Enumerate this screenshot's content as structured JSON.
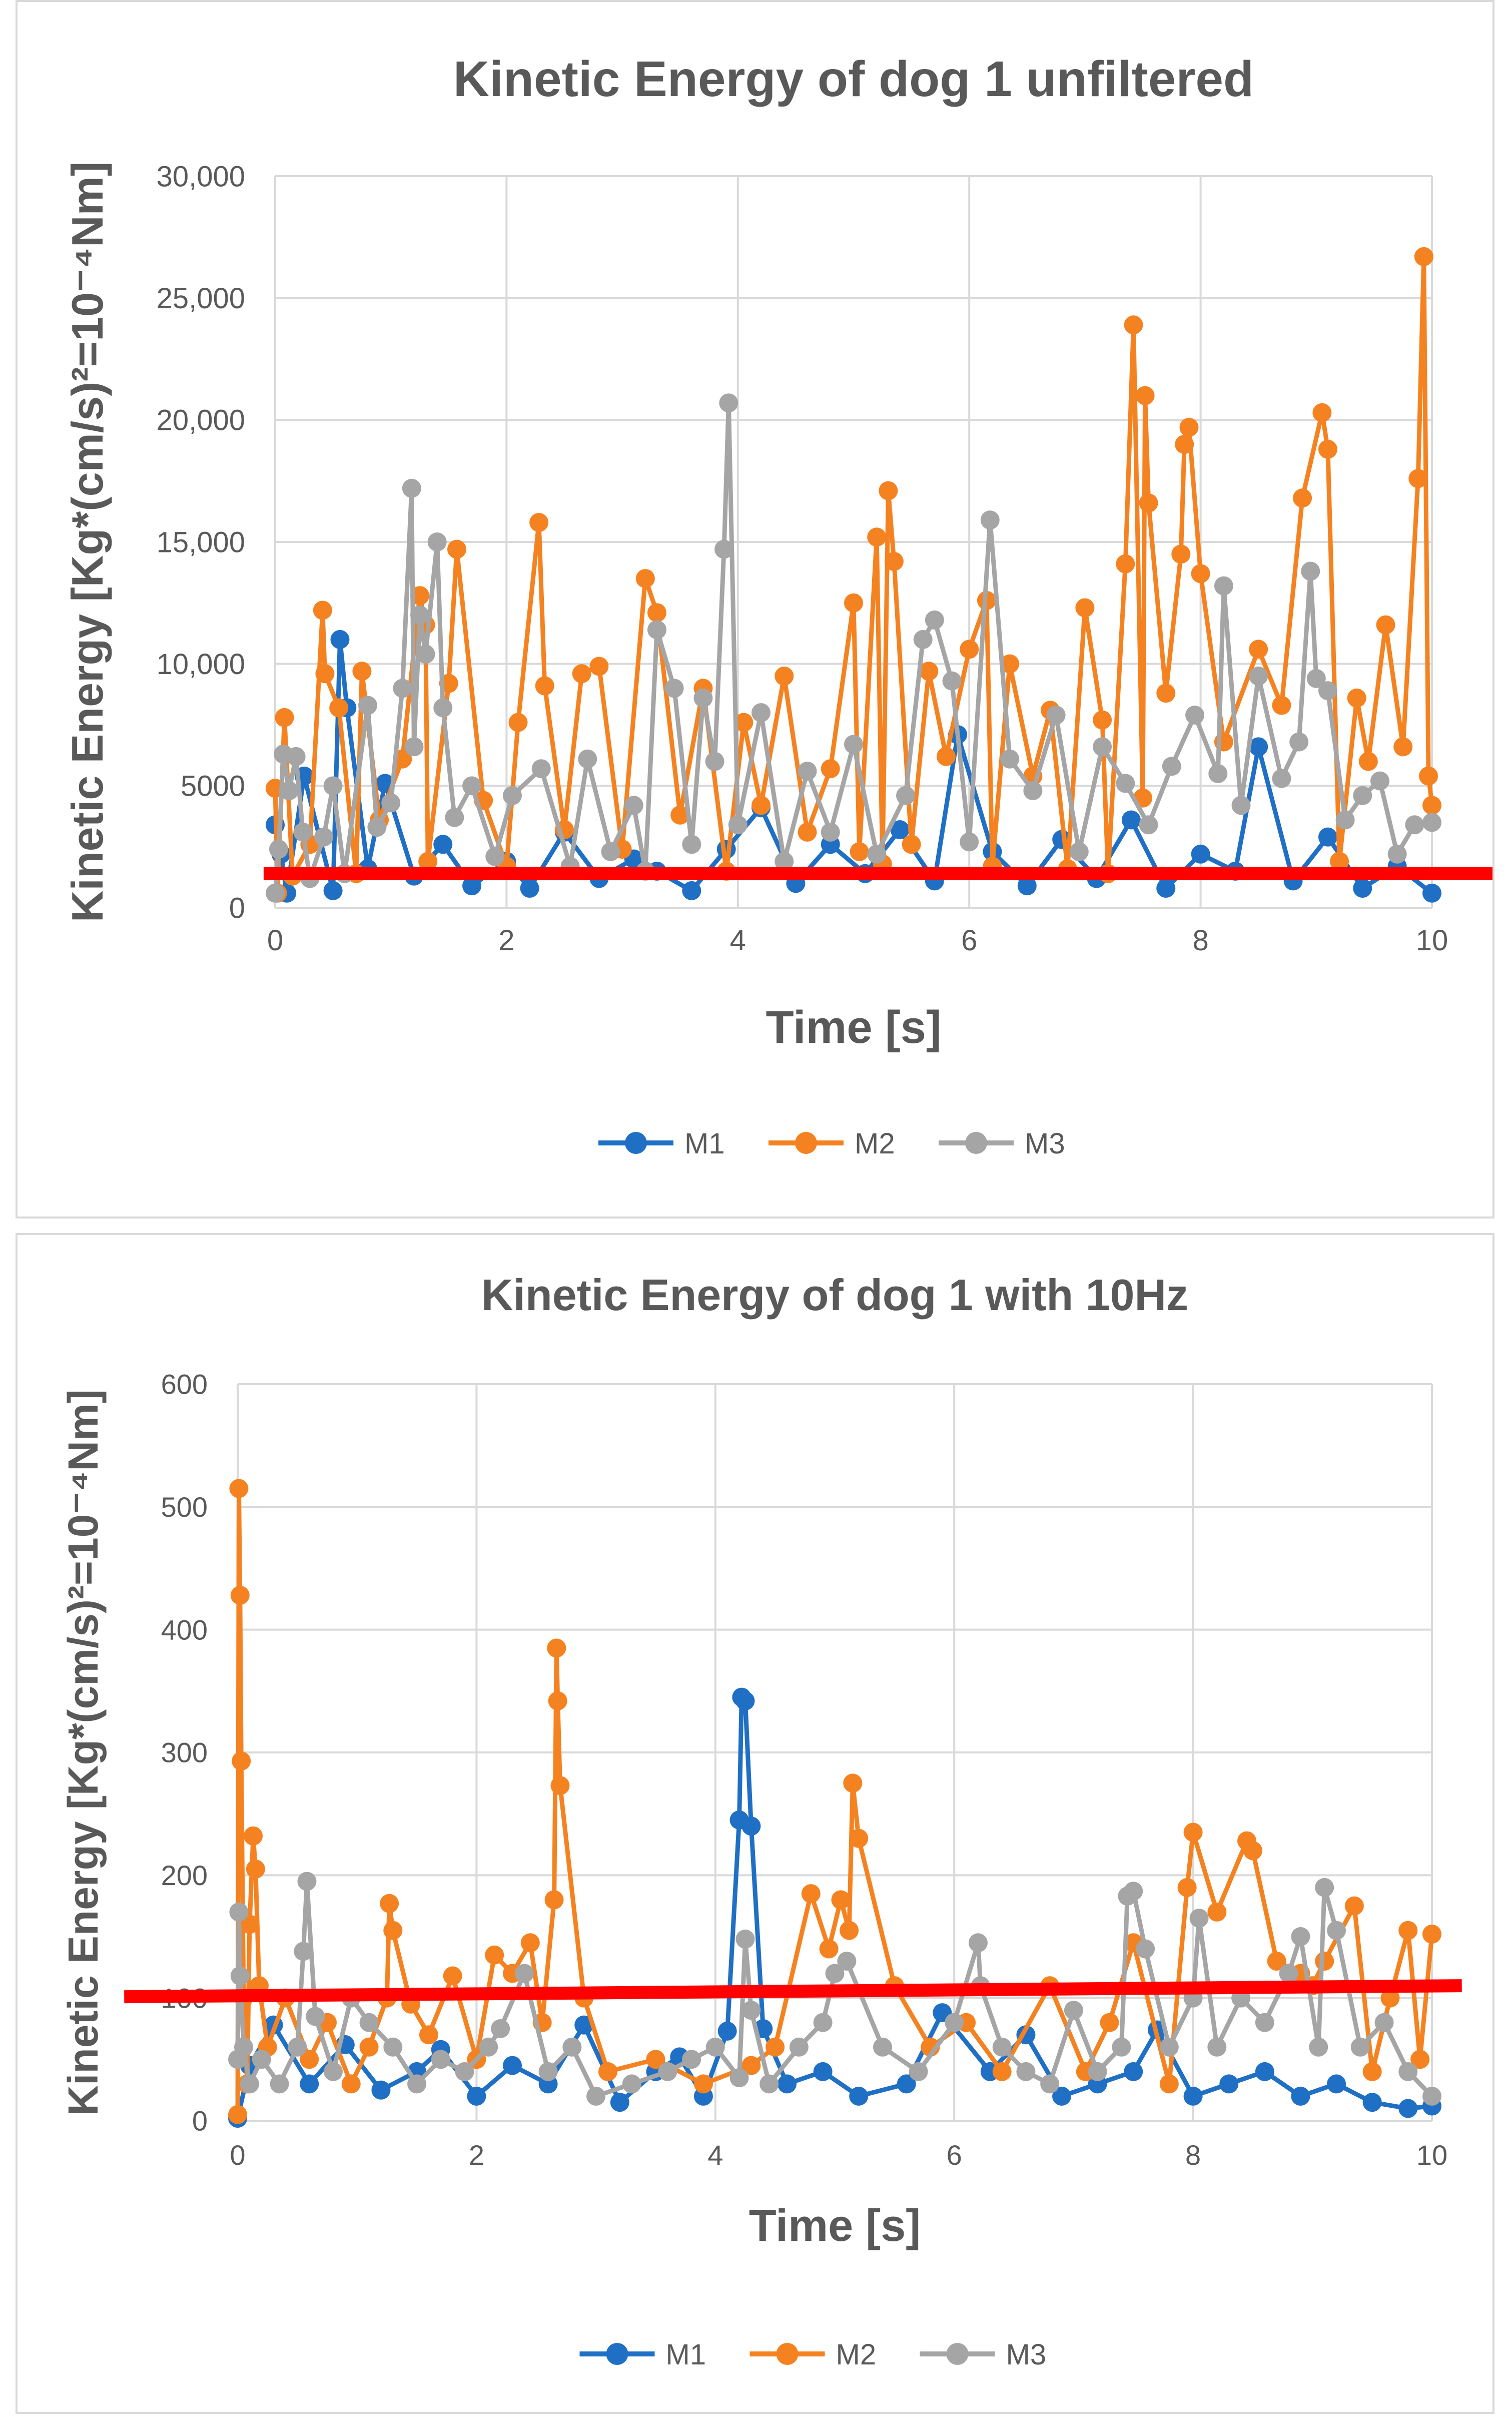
{
  "chart_data": [
    {
      "type": "line",
      "title": "Kinetic Energy of  dog 1 unfiltered",
      "xlabel": "Time [s]",
      "ylabel": "Kinetic Energy [Kg*(cm/s)²=10⁻⁴Nm]",
      "xlim": [
        0,
        10
      ],
      "ylim": [
        0,
        30000
      ],
      "x_ticks": [
        "0",
        "2",
        "4",
        "6",
        "8",
        "10"
      ],
      "y_ticks": [
        "0",
        "5000",
        "10,000",
        "15,000",
        "20,000",
        "25,000",
        "30,000"
      ],
      "legend": [
        "M1",
        "M2",
        "M3"
      ],
      "legend_position": "bottom",
      "grid": true,
      "threshold": {
        "label": "threshold",
        "x": [
          -0.1,
          10.55
        ],
        "y": [
          1400,
          1400
        ],
        "color": "#ff0000"
      },
      "series": [
        {
          "name": "M1",
          "color": "#1f6fc5",
          "x": [
            0.0,
            0.05,
            0.1,
            0.25,
            0.5,
            0.56,
            0.62,
            0.8,
            0.95,
            1.2,
            1.45,
            1.7,
            2.0,
            2.2,
            2.5,
            2.8,
            3.1,
            3.3,
            3.6,
            3.9,
            4.2,
            4.5,
            4.8,
            5.1,
            5.4,
            5.7,
            5.9,
            6.2,
            6.5,
            6.8,
            7.1,
            7.4,
            7.7,
            8.0,
            8.3,
            8.5,
            8.8,
            9.1,
            9.4,
            9.7,
            10.0
          ],
          "values": [
            3400,
            2200,
            600,
            5400,
            700,
            11000,
            8200,
            1600,
            5100,
            1300,
            2600,
            900,
            1900,
            800,
            3100,
            1200,
            2000,
            1500,
            700,
            2400,
            4100,
            1000,
            2600,
            1400,
            3200,
            1100,
            7100,
            2300,
            900,
            2800,
            1200,
            3600,
            800,
            2200,
            1500,
            6600,
            1100,
            2900,
            800,
            1700,
            600
          ]
        },
        {
          "name": "M2",
          "color": "#f58220",
          "x": [
            0.0,
            0.02,
            0.08,
            0.15,
            0.3,
            0.41,
            0.43,
            0.55,
            0.7,
            0.75,
            0.9,
            1.1,
            1.25,
            1.3,
            1.32,
            1.5,
            1.57,
            1.8,
            2.0,
            2.1,
            2.28,
            2.33,
            2.5,
            2.65,
            2.8,
            3.0,
            3.2,
            3.3,
            3.5,
            3.7,
            3.9,
            4.05,
            4.2,
            4.4,
            4.6,
            4.8,
            5.0,
            5.05,
            5.2,
            5.25,
            5.3,
            5.35,
            5.5,
            5.65,
            5.8,
            6.0,
            6.15,
            6.2,
            6.35,
            6.55,
            6.7,
            6.85,
            7.0,
            7.15,
            7.2,
            7.35,
            7.42,
            7.5,
            7.52,
            7.55,
            7.7,
            7.83,
            7.86,
            7.9,
            8.0,
            8.2,
            8.5,
            8.7,
            8.88,
            9.05,
            9.1,
            9.2,
            9.35,
            9.45,
            9.6,
            9.75,
            9.88,
            9.93,
            9.97,
            10.0
          ],
          "values": [
            4900,
            600,
            7800,
            1300,
            2600,
            12200,
            9600,
            8200,
            1400,
            9700,
            3600,
            6100,
            12800,
            11600,
            1900,
            9200,
            14700,
            4400,
            1700,
            7600,
            15800,
            9100,
            3200,
            9600,
            9900,
            2400,
            13500,
            12100,
            3800,
            9000,
            1500,
            7600,
            4200,
            9500,
            3100,
            5700,
            12500,
            2300,
            15200,
            1800,
            17100,
            14200,
            2600,
            9700,
            6200,
            10600,
            12600,
            1700,
            10000,
            5400,
            8100,
            1600,
            12300,
            7700,
            1400,
            14100,
            23900,
            4500,
            21000,
            16600,
            8800,
            14500,
            19000,
            19700,
            13700,
            6800,
            10600,
            8300,
            16800,
            20300,
            18800,
            1900,
            8600,
            6000,
            11600,
            6600,
            17600,
            26700,
            5400,
            4200
          ]
        },
        {
          "name": "M3",
          "color": "#a5a5a5",
          "x": [
            0.0,
            0.03,
            0.07,
            0.12,
            0.18,
            0.24,
            0.3,
            0.42,
            0.5,
            0.6,
            0.8,
            0.88,
            1.0,
            1.1,
            1.18,
            1.2,
            1.25,
            1.3,
            1.4,
            1.45,
            1.55,
            1.7,
            1.9,
            2.05,
            2.3,
            2.55,
            2.7,
            2.9,
            3.1,
            3.2,
            3.3,
            3.45,
            3.6,
            3.7,
            3.8,
            3.88,
            3.92,
            4.0,
            4.2,
            4.4,
            4.6,
            4.8,
            5.0,
            5.2,
            5.45,
            5.6,
            5.7,
            5.85,
            6.0,
            6.18,
            6.35,
            6.55,
            6.75,
            6.95,
            7.15,
            7.35,
            7.55,
            7.75,
            7.95,
            8.15,
            8.2,
            8.35,
            8.5,
            8.7,
            8.85,
            8.95,
            9.0,
            9.1,
            9.25,
            9.4,
            9.55,
            9.7,
            9.85,
            10.0
          ],
          "values": [
            600,
            2400,
            6300,
            4800,
            6200,
            3100,
            1200,
            2900,
            5000,
            1400,
            8300,
            3300,
            4300,
            9000,
            17200,
            6600,
            12000,
            10400,
            15000,
            8200,
            3700,
            5000,
            2100,
            4600,
            5700,
            1700,
            6100,
            2300,
            4200,
            1500,
            11400,
            9000,
            2600,
            8600,
            6000,
            14700,
            20700,
            3400,
            8000,
            1900,
            5600,
            3100,
            6700,
            2200,
            4600,
            11000,
            11800,
            9300,
            2700,
            15900,
            6100,
            4800,
            7900,
            2300,
            6600,
            5100,
            3400,
            5800,
            7900,
            5500,
            13200,
            4200,
            9500,
            5300,
            6800,
            13800,
            9400,
            8900,
            3600,
            4600,
            5200,
            2200,
            3400,
            3500
          ]
        }
      ]
    },
    {
      "type": "line",
      "title": "Kinetic Energy of dog 1 with 10Hz",
      "xlabel": "Time [s]",
      "ylabel": "Kinetic Energy [Kg*(cm/s)²=10⁻⁴Nm]",
      "xlim": [
        0,
        10
      ],
      "ylim": [
        0,
        600
      ],
      "x_ticks": [
        "0",
        "2",
        "4",
        "6",
        "8",
        "10"
      ],
      "y_ticks": [
        "0",
        "100",
        "200",
        "300",
        "400",
        "500",
        "600"
      ],
      "legend": [
        "M1",
        "M2",
        "M3"
      ],
      "legend_position": "bottom",
      "grid": true,
      "threshold": {
        "label": "threshold",
        "x": [
          -0.95,
          10.25
        ],
        "y": [
          101,
          110
        ],
        "color": "#ff0000"
      },
      "series": [
        {
          "name": "M1",
          "color": "#1f6fc5",
          "x": [
            0.0,
            0.1,
            0.3,
            0.6,
            0.9,
            1.2,
            1.5,
            1.7,
            2.0,
            2.3,
            2.6,
            2.9,
            3.2,
            3.5,
            3.7,
            3.9,
            4.1,
            4.2,
            4.22,
            4.25,
            4.3,
            4.4,
            4.6,
            4.9,
            5.2,
            5.6,
            5.9,
            6.3,
            6.6,
            6.9,
            7.2,
            7.5,
            7.7,
            8.0,
            8.3,
            8.6,
            8.9,
            9.2,
            9.5,
            9.8,
            10.0
          ],
          "values": [
            2,
            45,
            78,
            30,
            62,
            25,
            40,
            58,
            20,
            45,
            30,
            78,
            15,
            40,
            52,
            20,
            73,
            245,
            345,
            342,
            240,
            75,
            30,
            40,
            20,
            30,
            88,
            40,
            70,
            20,
            30,
            40,
            74,
            20,
            30,
            40,
            20,
            30,
            15,
            10,
            12
          ]
        },
        {
          "name": "M2",
          "color": "#f58220",
          "x": [
            0.0,
            0.01,
            0.02,
            0.03,
            0.05,
            0.08,
            0.1,
            0.13,
            0.15,
            0.18,
            0.25,
            0.4,
            0.6,
            0.75,
            0.95,
            1.1,
            1.25,
            1.27,
            1.3,
            1.45,
            1.6,
            1.8,
            2.0,
            2.15,
            2.3,
            2.45,
            2.55,
            2.65,
            2.67,
            2.68,
            2.7,
            2.9,
            3.1,
            3.5,
            3.9,
            4.3,
            4.5,
            4.8,
            4.95,
            5.05,
            5.12,
            5.15,
            5.2,
            5.5,
            5.8,
            6.1,
            6.4,
            6.8,
            7.1,
            7.3,
            7.5,
            7.8,
            7.95,
            8.0,
            8.2,
            8.45,
            8.5,
            8.7,
            8.9,
            9.0,
            9.1,
            9.35,
            9.5,
            9.65,
            9.8,
            9.9,
            10.0
          ],
          "values": [
            5,
            515,
            428,
            293,
            100,
            30,
            160,
            232,
            205,
            110,
            60,
            100,
            50,
            80,
            30,
            60,
            100,
            177,
            155,
            95,
            70,
            118,
            50,
            135,
            120,
            145,
            80,
            180,
            385,
            342,
            273,
            100,
            40,
            50,
            30,
            45,
            60,
            185,
            140,
            180,
            155,
            275,
            230,
            110,
            60,
            80,
            40,
            110,
            40,
            80,
            145,
            30,
            190,
            235,
            170,
            228,
            220,
            130,
            120,
            110,
            130,
            175,
            40,
            100,
            155,
            50,
            152
          ]
        },
        {
          "name": "M3",
          "color": "#a5a5a5",
          "x": [
            0.0,
            0.01,
            0.02,
            0.05,
            0.1,
            0.2,
            0.35,
            0.5,
            0.55,
            0.58,
            0.65,
            0.8,
            0.95,
            1.1,
            1.3,
            1.5,
            1.7,
            1.9,
            2.1,
            2.2,
            2.4,
            2.6,
            2.8,
            3.0,
            3.3,
            3.6,
            3.8,
            4.0,
            4.2,
            4.25,
            4.3,
            4.45,
            4.7,
            4.9,
            5.0,
            5.1,
            5.4,
            5.7,
            6.0,
            6.2,
            6.22,
            6.4,
            6.6,
            6.8,
            7.0,
            7.2,
            7.4,
            7.45,
            7.5,
            7.6,
            7.8,
            8.0,
            8.05,
            8.2,
            8.4,
            8.6,
            8.8,
            8.9,
            9.05,
            9.1,
            9.2,
            9.4,
            9.6,
            9.8,
            10.0
          ],
          "values": [
            50,
            170,
            118,
            60,
            30,
            50,
            30,
            60,
            138,
            195,
            85,
            40,
            100,
            80,
            60,
            30,
            50,
            40,
            60,
            75,
            120,
            40,
            60,
            20,
            30,
            40,
            50,
            60,
            35,
            148,
            90,
            30,
            60,
            80,
            120,
            130,
            60,
            40,
            80,
            145,
            110,
            60,
            40,
            30,
            90,
            40,
            60,
            183,
            187,
            140,
            60,
            100,
            165,
            60,
            100,
            80,
            120,
            150,
            60,
            190,
            155,
            60,
            80,
            40,
            20
          ]
        }
      ]
    }
  ]
}
